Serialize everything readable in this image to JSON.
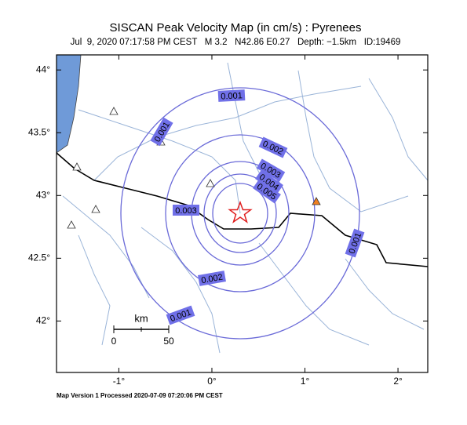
{
  "header": {
    "title": "SISCAN Peak Velocity Map (in cm/s) : Pyrenees",
    "subtitle": "Jul  9, 2020 07:17:58 PM CEST   M 3.2   N42.86 E0.27   Depth: −1.5km   ID:19469"
  },
  "map": {
    "lonlim": [
      -1.67,
      2.32
    ],
    "latlim": [
      41.59,
      44.12
    ],
    "lon_ticks": [
      {
        "value": -1,
        "label": "-1°"
      },
      {
        "value": 0,
        "label": "0°"
      },
      {
        "value": 1,
        "label": "1°"
      },
      {
        "value": 2,
        "label": "2°"
      }
    ],
    "lat_ticks": [
      {
        "value": 44,
        "label": "44°"
      },
      {
        "value": 43.5,
        "label": "43.5°"
      },
      {
        "value": 43,
        "label": "43°"
      },
      {
        "value": 42.5,
        "label": "42.5°"
      },
      {
        "value": 42,
        "label": "42°"
      }
    ],
    "contour_labels": [
      "0.001",
      "0.001",
      "0.002",
      "0.003",
      "0.004",
      "0.005",
      "0.003",
      "0.001",
      "0.002",
      "0.001"
    ],
    "scale": {
      "unit": "km",
      "start": "0",
      "end": "50"
    }
  },
  "footer": "Map Version 1 Processed 2020-07-09 07:20:06 PM CEST"
}
